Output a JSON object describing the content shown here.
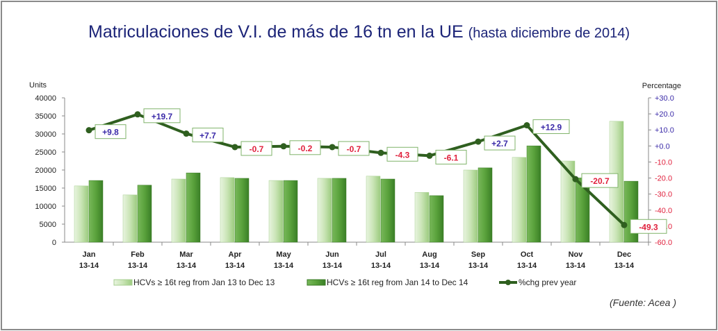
{
  "title": {
    "main": "Matriculaciones de V.I. de más de 16 tn en la UE",
    "sub": "(hasta diciembre de 2014)"
  },
  "source": "(Fuente: Acea )",
  "colors": {
    "light_bar": "#b9dca2",
    "dark_bar": "#4f9a35",
    "line": "#2f5f1f",
    "positive": "#3a2aa8",
    "negative": "#e0203c",
    "title": "#1c2478"
  },
  "chart_data": {
    "type": "bar+line",
    "categories": [
      "Jan",
      "Feb",
      "Mar",
      "Apr",
      "May",
      "Jun",
      "Jul",
      "Aug",
      "Sep",
      "Oct",
      "Nov",
      "Dec"
    ],
    "category_sub": "13-14",
    "ylabel": "Units",
    "y2label": "Percentage",
    "ylim": [
      0,
      40000
    ],
    "yticks": [
      0,
      5000,
      10000,
      15000,
      20000,
      25000,
      30000,
      35000,
      40000
    ],
    "y2lim": [
      -60,
      30
    ],
    "y2ticks": [
      "-60.0",
      "-50.0",
      "-40.0",
      "-30.0",
      "-20.0",
      "-10.0",
      "+0.0",
      "+10.0",
      "+20.0",
      "+30.0"
    ],
    "series": [
      {
        "name": "HCVs ≥ 16t reg from Jan 13 to Dec 13",
        "type": "bar",
        "values": [
          15600,
          13100,
          17500,
          17900,
          17100,
          17700,
          18300,
          13800,
          20000,
          23500,
          22500,
          33500
        ]
      },
      {
        "name": "HCVs ≥ 16t reg from Jan 14 to Dec 14",
        "type": "bar",
        "values": [
          17100,
          15800,
          19200,
          17700,
          17100,
          17700,
          17500,
          12900,
          20600,
          26700,
          17800,
          16900
        ]
      },
      {
        "name": "%chg prev year",
        "type": "line",
        "axis": "right",
        "values": [
          9.8,
          19.7,
          7.7,
          -0.7,
          -0.2,
          -0.7,
          -4.3,
          -6.1,
          2.7,
          12.9,
          -20.7,
          -49.3
        ],
        "labels": [
          "+9.8",
          "+19.7",
          "+7.7",
          "-0.7",
          "-0.2",
          "-0.7",
          "-4.3",
          "-6.1",
          "+2.7",
          "+12.9",
          "-20.7",
          "-49.3"
        ]
      }
    ],
    "legend": "bottom"
  }
}
